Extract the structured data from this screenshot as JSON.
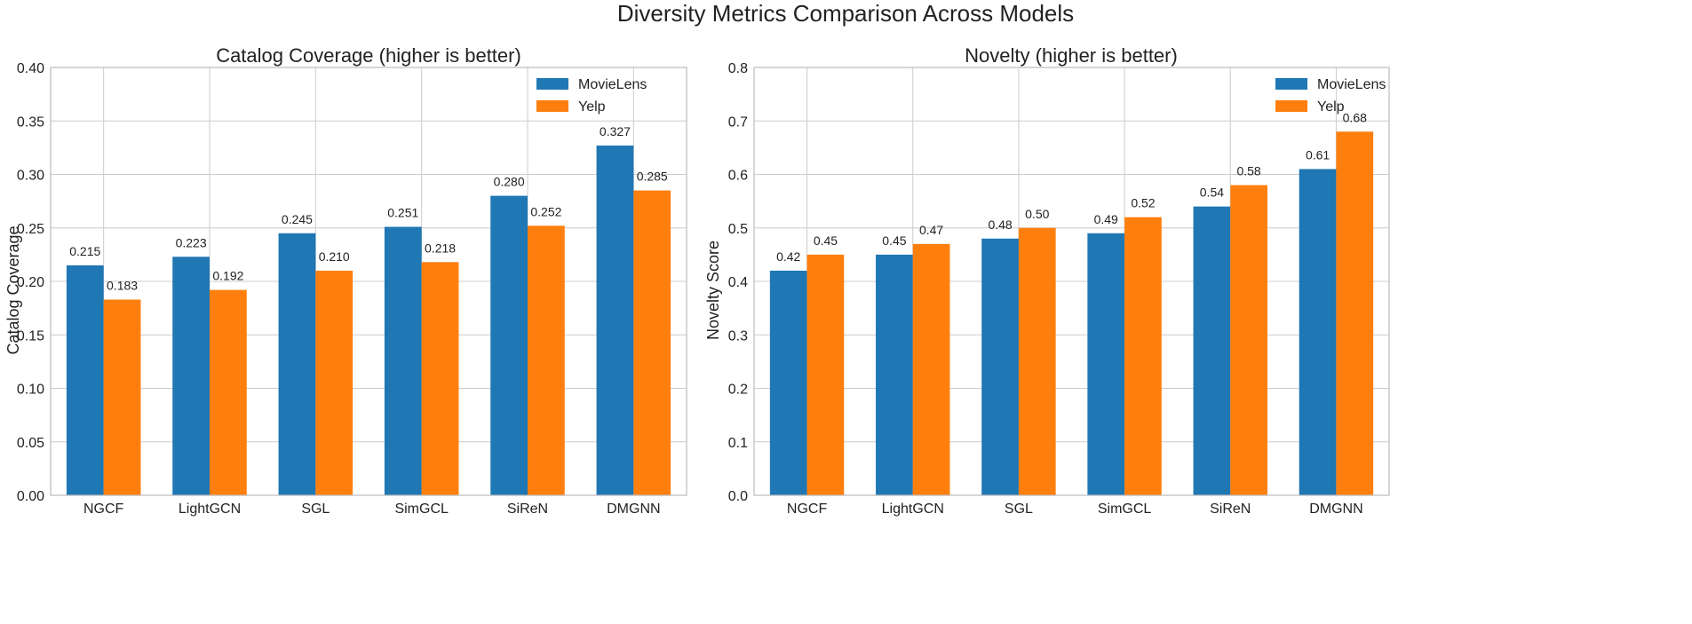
{
  "figure": {
    "title": "Diversity Metrics Comparison Across Models"
  },
  "colors": {
    "series": [
      "#1f77b4",
      "#ff7f0e"
    ]
  },
  "chart_data": [
    {
      "type": "bar",
      "title": "Catalog Coverage (higher is better)",
      "xlabel": "",
      "ylabel": "Catalog Coverage",
      "ylim": [
        0,
        0.4
      ],
      "yticks": [
        "0.00",
        "0.05",
        "0.10",
        "0.15",
        "0.20",
        "0.25",
        "0.30",
        "0.35",
        "0.40"
      ],
      "categories": [
        "NGCF",
        "LightGCN",
        "SGL",
        "SimGCL",
        "SiReN",
        "DMGNN"
      ],
      "series": [
        {
          "name": "MovieLens",
          "values": [
            0.215,
            0.223,
            0.245,
            0.251,
            0.28,
            0.327
          ],
          "labels": [
            "0.215",
            "0.223",
            "0.245",
            "0.251",
            "0.280",
            "0.327"
          ]
        },
        {
          "name": "Yelp",
          "values": [
            0.183,
            0.192,
            0.21,
            0.218,
            0.252,
            0.285
          ],
          "labels": [
            "0.183",
            "0.192",
            "0.210",
            "0.218",
            "0.252",
            "0.285"
          ]
        }
      ],
      "legend": "top-right",
      "grid": true
    },
    {
      "type": "bar",
      "title": "Novelty (higher is better)",
      "xlabel": "",
      "ylabel": "Novelty Score",
      "ylim": [
        0,
        0.8
      ],
      "yticks": [
        "0.0",
        "0.1",
        "0.2",
        "0.3",
        "0.4",
        "0.5",
        "0.6",
        "0.7",
        "0.8"
      ],
      "categories": [
        "NGCF",
        "LightGCN",
        "SGL",
        "SimGCL",
        "SiReN",
        "DMGNN"
      ],
      "series": [
        {
          "name": "MovieLens",
          "values": [
            0.42,
            0.45,
            0.48,
            0.49,
            0.54,
            0.61
          ],
          "labels": [
            "0.42",
            "0.45",
            "0.48",
            "0.49",
            "0.54",
            "0.61"
          ]
        },
        {
          "name": "Yelp",
          "values": [
            0.45,
            0.47,
            0.5,
            0.52,
            0.58,
            0.68
          ],
          "labels": [
            "0.45",
            "0.47",
            "0.50",
            "0.52",
            "0.58",
            "0.68"
          ]
        }
      ],
      "legend": "top-right",
      "grid": true
    }
  ]
}
